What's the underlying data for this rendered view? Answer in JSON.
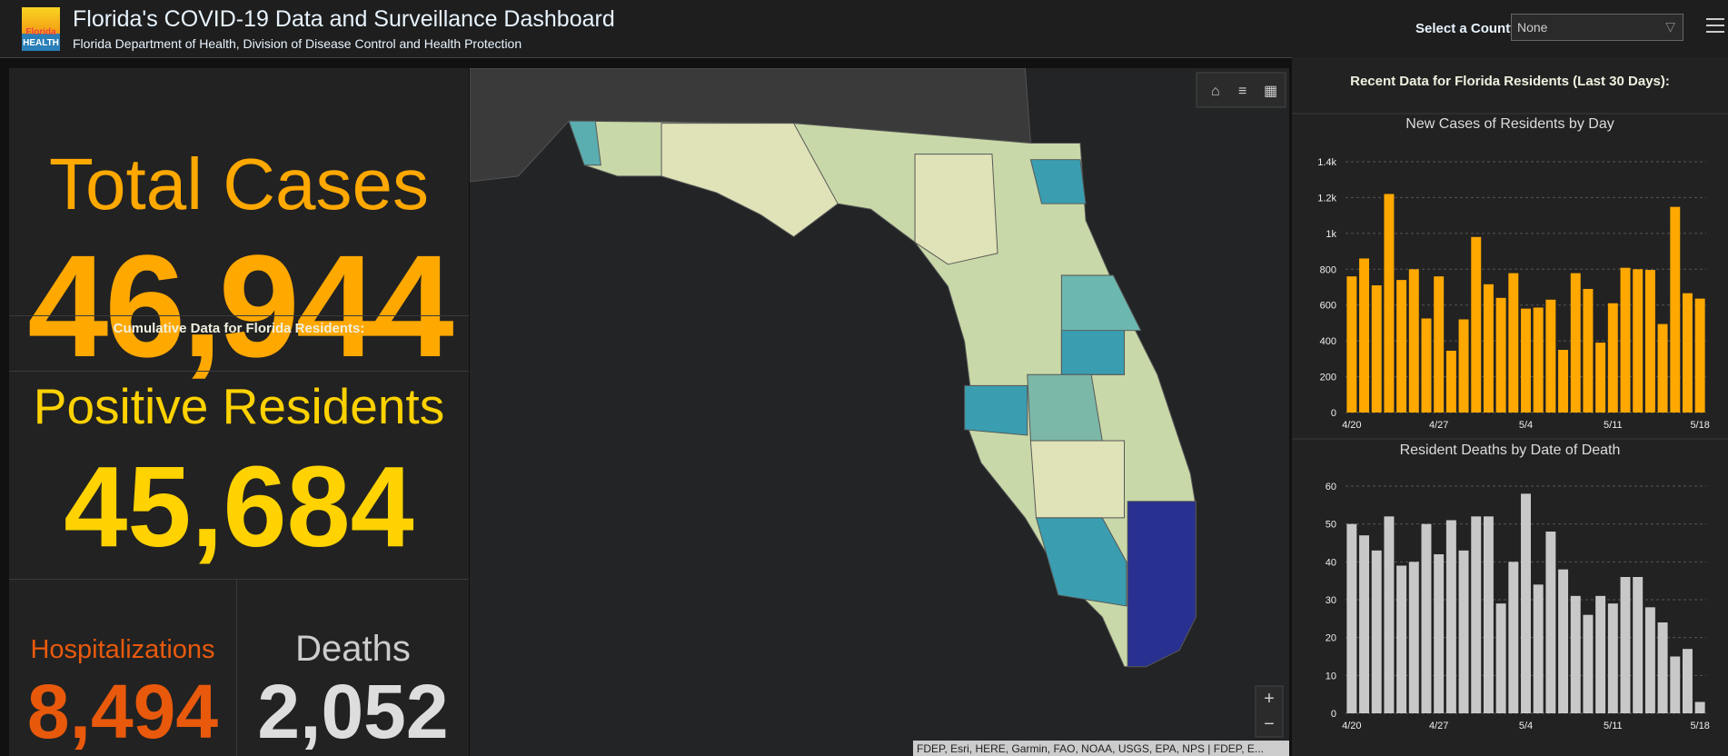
{
  "header": {
    "title": "Florida's COVID-19 Data and Surveillance Dashboard",
    "subtitle": "Florida Department of Health, Division of Disease Control and Health Protection",
    "logo_lines": [
      "Florida",
      "HEALTH"
    ],
    "county_label": "Select a County",
    "county_value": "None"
  },
  "kpis": {
    "total_cases": {
      "label": "Total Cases",
      "value": "46,944"
    },
    "cumulative_note": "Cumulative Data for Florida Residents:",
    "positive_residents": {
      "label": "Positive Residents",
      "value": "45,684"
    },
    "hospitalizations": {
      "label": "Hospitalizations",
      "value": "8,494"
    },
    "deaths": {
      "label": "Deaths",
      "value": "2,052"
    }
  },
  "map": {
    "attribution": "FDEP, Esri, HERE, Garmin, FAO, NOAA, USGS, EPA, NPS | FDEP, E..."
  },
  "side_panel": {
    "heading": "Recent Data for Florida Residents (Last 30 Days):",
    "charts": [
      {
        "type": "bar",
        "title": "New Cases of Residents by Day",
        "color": "#ffa800",
        "categories": [
          "4/20",
          null,
          null,
          null,
          null,
          null,
          null,
          "4/27",
          null,
          null,
          null,
          null,
          null,
          null,
          "5/4",
          null,
          null,
          null,
          null,
          null,
          null,
          "5/11",
          null,
          null,
          null,
          null,
          null,
          null,
          "5/18"
        ],
        "values": [
          760,
          860,
          710,
          1220,
          740,
          800,
          525,
          760,
          345,
          520,
          980,
          716,
          640,
          778,
          580,
          586,
          630,
          350,
          778,
          690,
          390,
          610,
          808,
          800,
          796,
          494,
          1148,
          666,
          636
        ],
        "ylim": [
          0,
          1400
        ],
        "yticks": [
          0,
          200,
          400,
          600,
          800,
          {
            "value": 1000,
            "label": "1k"
          },
          {
            "value": 1200,
            "label": "1.2k"
          },
          {
            "value": 1400,
            "label": "1.4k"
          }
        ],
        "grid": true
      },
      {
        "type": "bar",
        "title": "Resident Deaths by Date of Death",
        "color": "#c8c8c8",
        "categories": [
          "4/20",
          null,
          null,
          null,
          null,
          null,
          null,
          "4/27",
          null,
          null,
          null,
          null,
          null,
          null,
          "5/4",
          null,
          null,
          null,
          null,
          null,
          null,
          "5/11",
          null,
          null,
          null,
          null,
          null,
          null,
          "5/18"
        ],
        "values": [
          50,
          47,
          43,
          52,
          39,
          40,
          50,
          42,
          51,
          43,
          52,
          52,
          29,
          40,
          58,
          34,
          48,
          38,
          31,
          26,
          31,
          29,
          36,
          36,
          28,
          24,
          15,
          17,
          3
        ],
        "ylim": [
          0,
          60
        ],
        "yticks": [
          0,
          10,
          20,
          30,
          40,
          50,
          60
        ],
        "grid": true
      }
    ]
  }
}
